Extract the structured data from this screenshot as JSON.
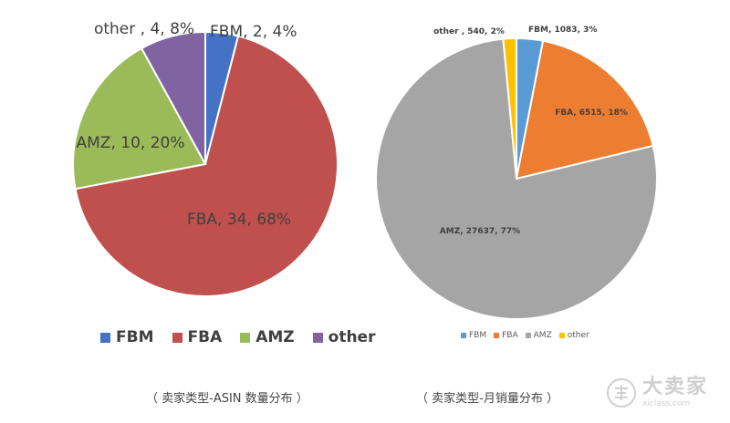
{
  "chart_data": [
    {
      "type": "pie",
      "title": "",
      "caption": "（ 卖家类型-ASIN 数量分布 ）",
      "legend_position": "bottom",
      "slices": [
        {
          "name": "FBM",
          "value": 2,
          "percent": 4,
          "color": "#4472C4",
          "label": "FBM, 2, 4%"
        },
        {
          "name": "FBA",
          "value": 34,
          "percent": 68,
          "color": "#C0504D",
          "label": "FBA, 34, 68%"
        },
        {
          "name": "AMZ",
          "value": 10,
          "percent": 20,
          "color": "#9BBB59",
          "label": "AMZ, 10, 20%"
        },
        {
          "name": "other",
          "value": 4,
          "percent": 8,
          "color": "#8064A2",
          "label": "other , 4, 8%"
        }
      ]
    },
    {
      "type": "pie",
      "title": "",
      "caption": "（ 卖家类型-月销量分布 ）",
      "legend_position": "bottom",
      "slices": [
        {
          "name": "FBM",
          "value": 1083,
          "percent": 3,
          "color": "#5B9BD5",
          "label": "FBM, 1083, 3%"
        },
        {
          "name": "FBA",
          "value": 6515,
          "percent": 18,
          "color": "#ED7D31",
          "label": "FBA, 6515, 18%"
        },
        {
          "name": "AMZ",
          "value": 27637,
          "percent": 77,
          "color": "#A5A5A5",
          "label": "AMZ, 27637, 77%"
        },
        {
          "name": "other",
          "value": 540,
          "percent": 2,
          "color": "#FFC000",
          "label": "other , 540, 2%"
        }
      ]
    }
  ],
  "watermark": {
    "name": "大卖家",
    "url": "xiclass.com",
    "icon": "seal-icon"
  }
}
